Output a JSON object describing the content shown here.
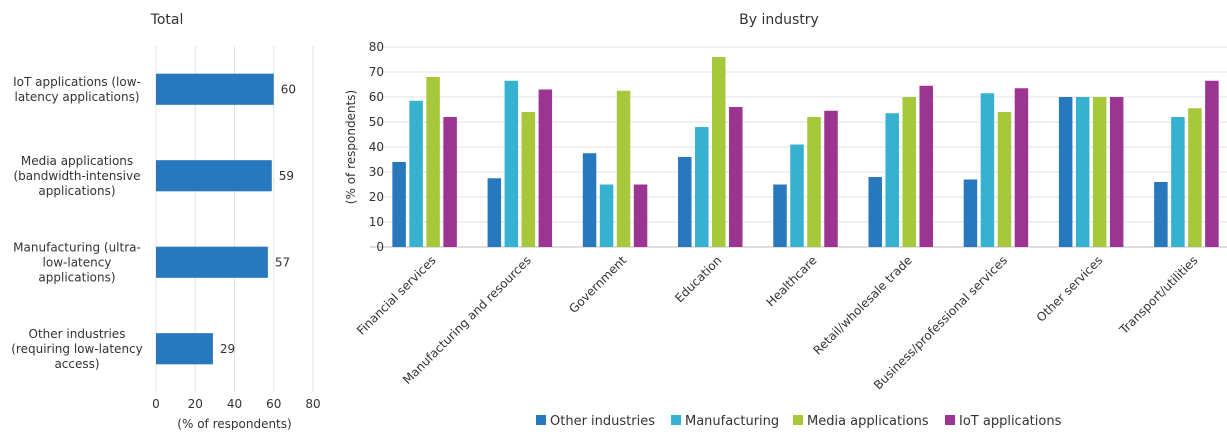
{
  "chart_data": [
    {
      "type": "bar",
      "orientation": "horizontal",
      "title": "Total",
      "xlabel": "(% of respondents)",
      "xlim": [
        0,
        80
      ],
      "xticks": [
        0,
        20,
        40,
        60,
        80
      ],
      "grid": true,
      "categories": [
        [
          "IoT applications (low-",
          "latency applications)"
        ],
        [
          "Media applications",
          "(bandwidth-intensive",
          "applications)"
        ],
        [
          "Manufacturing (ultra-",
          "low-latency",
          "applications)"
        ],
        [
          "Other industries",
          "(requiring low-latency",
          "access)"
        ]
      ],
      "values": [
        60,
        59,
        57,
        29
      ],
      "color": "#2878bd"
    },
    {
      "type": "bar",
      "title": "By industry",
      "ylabel": "(% of respondents)",
      "ylim": [
        0,
        80
      ],
      "yticks": [
        0,
        10,
        20,
        30,
        40,
        50,
        60,
        70,
        80
      ],
      "grid": true,
      "legend_position": "bottom",
      "categories": [
        "Financial services",
        "Manufacturing and resources",
        "Government",
        "Education",
        "Healthcare",
        "Retail/wholesale trade",
        "Business/professional services",
        "Other services",
        "Transport/utilities"
      ],
      "series": [
        {
          "name": "Other industries",
          "color": "#2878bd",
          "values": [
            34,
            27.5,
            37.5,
            36,
            25,
            28,
            27,
            60,
            26
          ]
        },
        {
          "name": "Manufacturing",
          "color": "#36b1cf",
          "values": [
            58.5,
            66.5,
            25,
            48,
            41,
            53.5,
            61.5,
            60,
            52
          ]
        },
        {
          "name": "Media applications",
          "color": "#a6c83a",
          "values": [
            68,
            54,
            62.5,
            76,
            52,
            60,
            54,
            60,
            55.5
          ]
        },
        {
          "name": "IoT applications",
          "color": "#9c3592",
          "values": [
            52,
            63,
            25,
            56,
            54.5,
            64.5,
            63.5,
            60,
            66.5
          ]
        }
      ]
    }
  ]
}
